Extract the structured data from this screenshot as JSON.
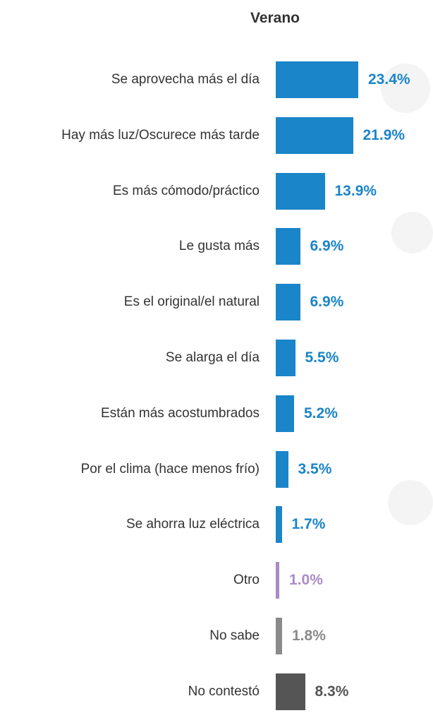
{
  "chart_data": {
    "type": "bar",
    "orientation": "horizontal",
    "title": "Verano",
    "categories": [
      "Se aprovecha más el día",
      "Hay más luz/Oscurece más tarde",
      "Es más cómodo/práctico",
      "Le gusta más",
      "Es el original/el natural",
      "Se alarga el día",
      "Están más acostumbrados",
      "Por el clima (hace menos frío)",
      "Se ahorra luz eléctrica",
      "Otro",
      "No sabe",
      "No contestó"
    ],
    "values": [
      23.4,
      21.9,
      13.9,
      6.9,
      6.9,
      5.5,
      5.2,
      3.5,
      1.7,
      1.0,
      1.8,
      8.3
    ],
    "value_labels": [
      "23.4%",
      "21.9%",
      "13.9%",
      "6.9%",
      "6.9%",
      "5.5%",
      "5.2%",
      "3.5%",
      "1.7%",
      "1.0%",
      "1.8%",
      "8.3%"
    ],
    "colors": [
      "#1a85c8",
      "#1a85c8",
      "#1a85c8",
      "#1a85c8",
      "#1a85c8",
      "#1a85c8",
      "#1a85c8",
      "#1a85c8",
      "#1a85c8",
      "#a98bc8",
      "#8a8a8a",
      "#555555"
    ]
  }
}
